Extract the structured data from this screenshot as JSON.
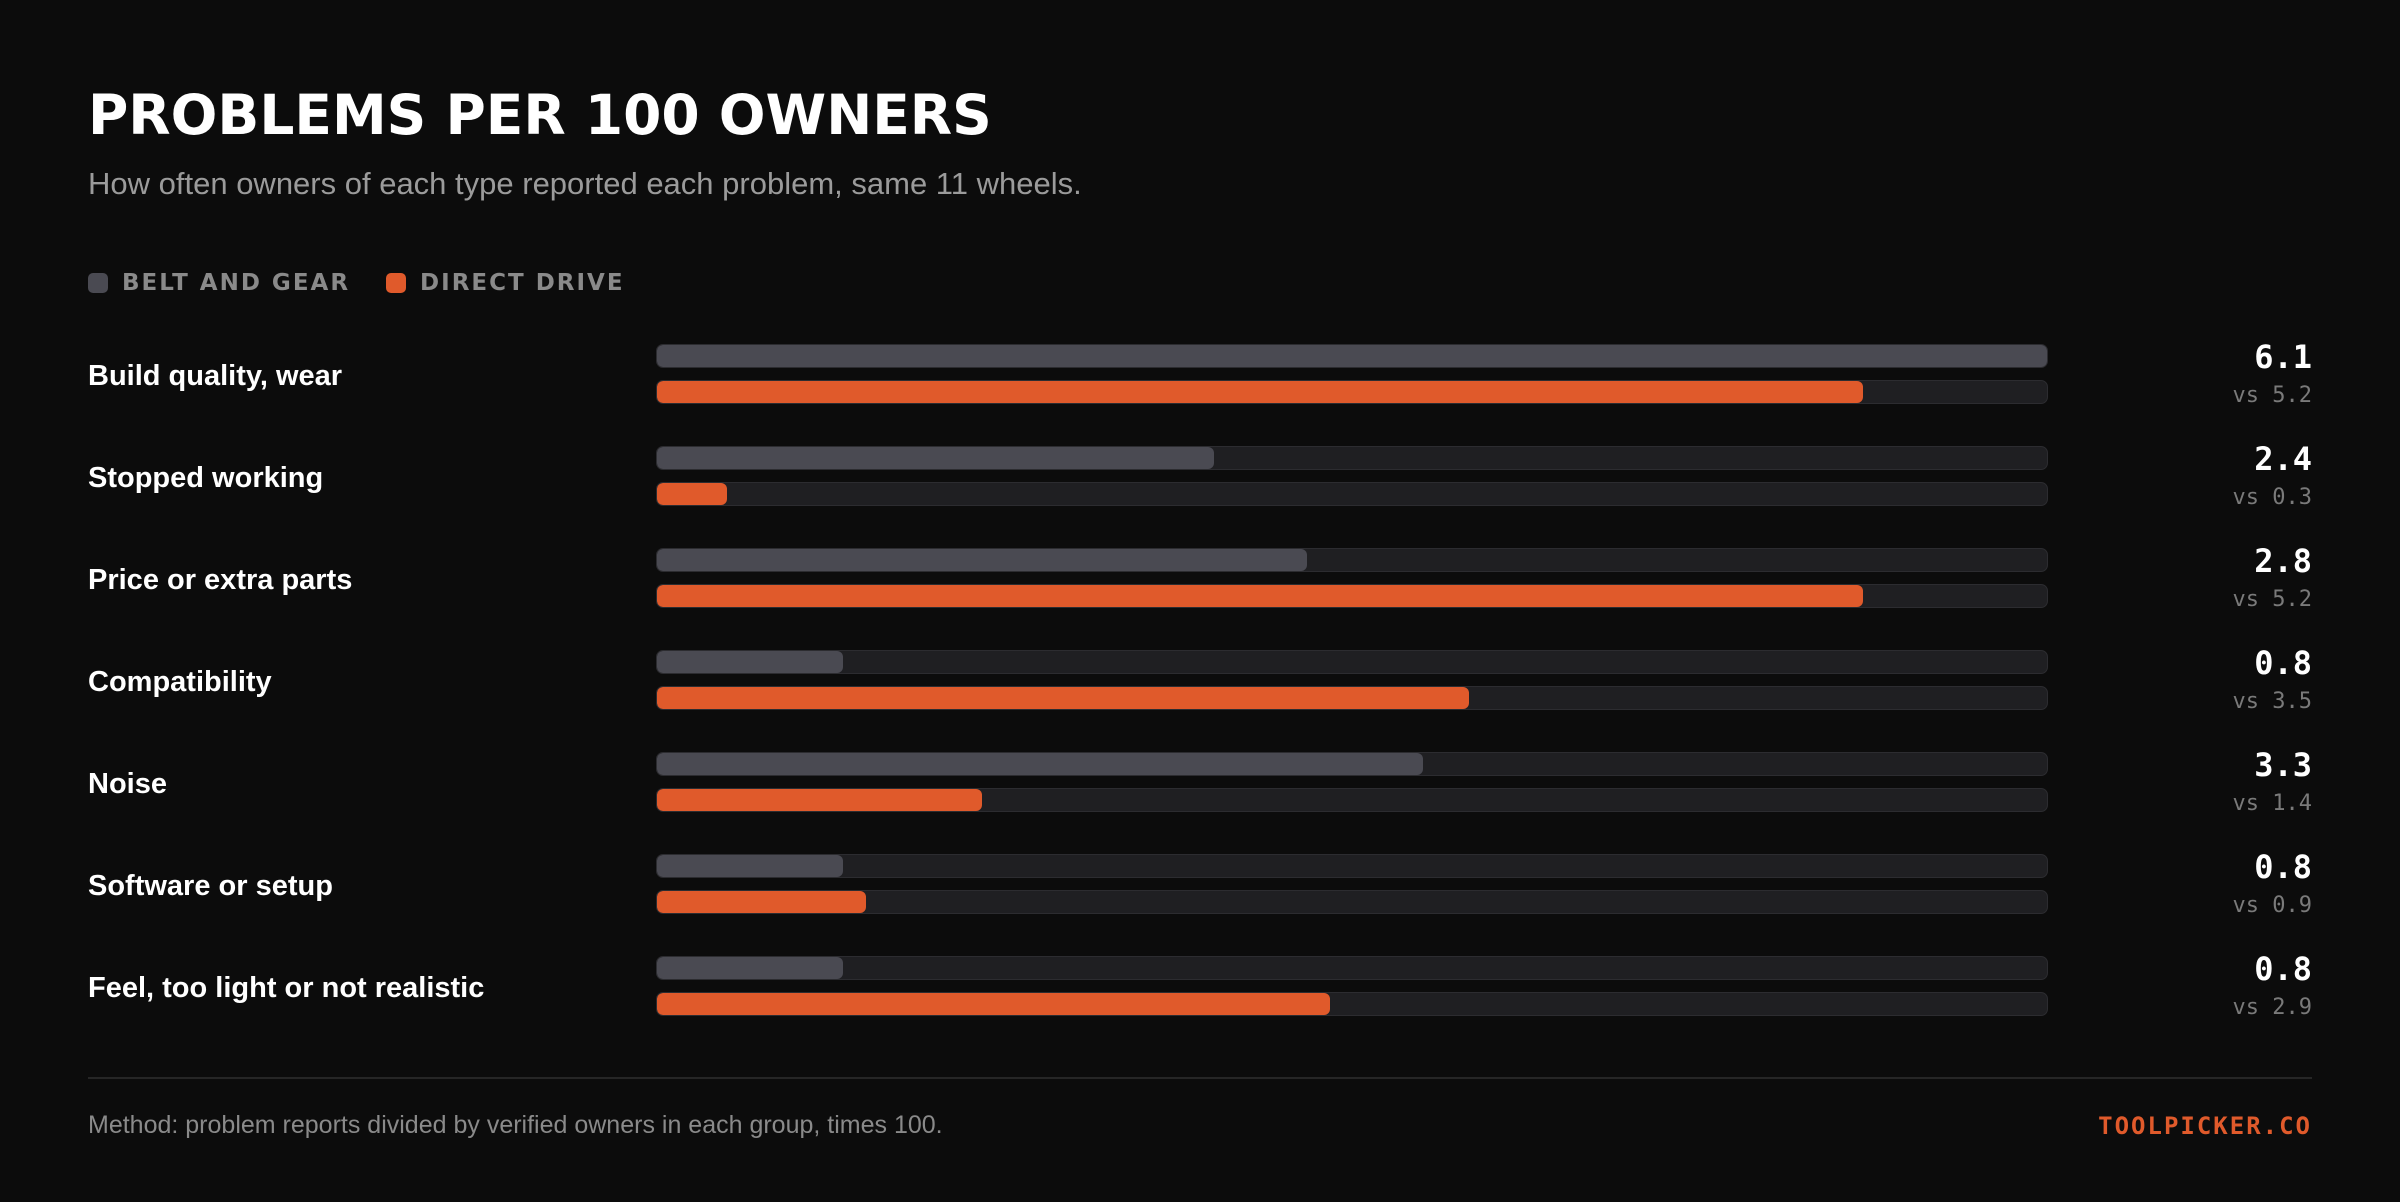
{
  "header": {
    "title": "PROBLEMS PER 100 OWNERS",
    "subtitle": "How often owners of each type reported each problem, same 11 wheels."
  },
  "legend": [
    {
      "label": "BELT AND GEAR",
      "color": "#4a4a52"
    },
    {
      "label": "DIRECT DRIVE",
      "color": "#e05a2b"
    }
  ],
  "chart_data": {
    "type": "bar",
    "orientation": "horizontal",
    "title": "PROBLEMS PER 100 OWNERS",
    "subtitle": "How often owners of each type reported each problem, same 11 wheels.",
    "categories": [
      "Build quality, wear",
      "Stopped working",
      "Price or extra parts",
      "Compatibility",
      "Noise",
      "Software or setup",
      "Feel, too light or not realistic"
    ],
    "series": [
      {
        "name": "BELT AND GEAR",
        "color": "#4a4a52",
        "values": [
          6.1,
          2.4,
          2.8,
          0.8,
          3.3,
          0.8,
          0.8
        ]
      },
      {
        "name": "DIRECT DRIVE",
        "color": "#e05a2b",
        "values": [
          5.2,
          0.3,
          5.2,
          3.5,
          1.4,
          0.9,
          2.9
        ]
      }
    ],
    "value_labels": [
      "6.1",
      "2.4",
      "2.8",
      "0.8",
      "3.3",
      "0.8",
      "0.8"
    ],
    "compare_labels": [
      "vs 5.2",
      "vs 0.3",
      "vs 5.2",
      "vs 3.5",
      "vs 1.4",
      "vs 0.9",
      "vs 2.9"
    ],
    "xlim": [
      0,
      6.0
    ],
    "legend_position": "top-left",
    "grid": false
  },
  "footer": {
    "method": "Method: problem reports divided by verified owners in each group, times 100.",
    "brand": "TOOLPICKER.CO",
    "brand_color": "#e05a2b"
  },
  "colors": {
    "background": "#0c0c0c",
    "track": "#1f1f22"
  }
}
